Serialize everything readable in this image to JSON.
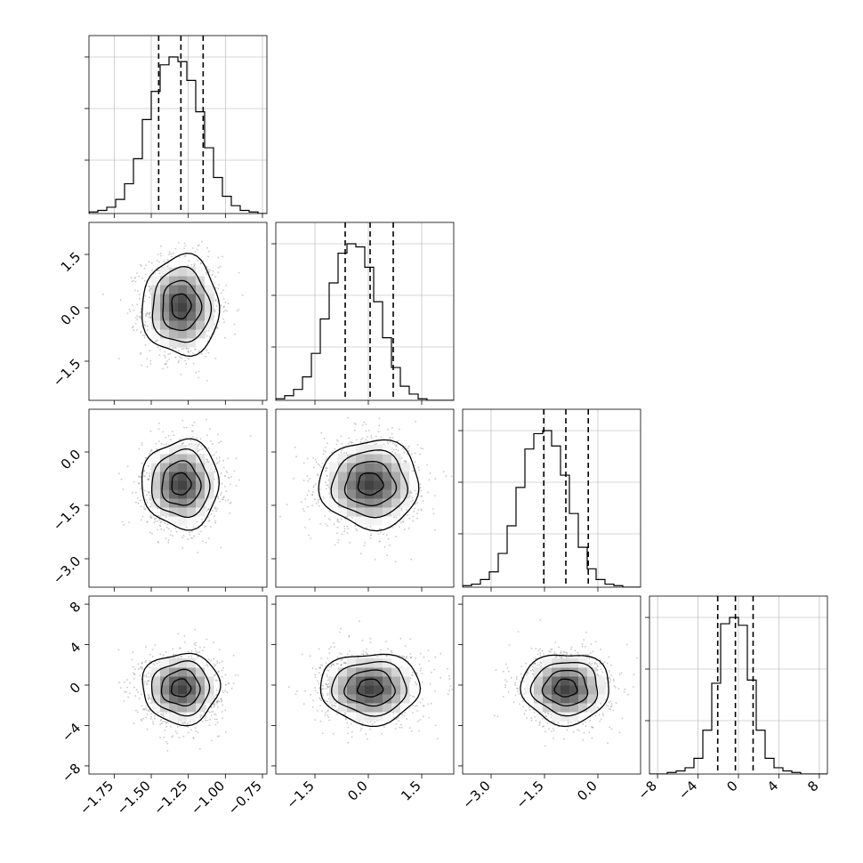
{
  "chart_data": {
    "type": "corner",
    "n_params": 4,
    "grid": true,
    "parameters": [
      {
        "range": [
          -1.92,
          -0.72
        ],
        "ticks": [
          -1.75,
          -1.5,
          -1.25,
          -1.0,
          -0.75
        ],
        "tick_labels": [
          "−1.75",
          "−1.50",
          "−1.25",
          "−1.00",
          "−0.75"
        ],
        "mean": -1.3,
        "sd": 0.13,
        "quantiles": [
          -1.45,
          -1.3,
          -1.15
        ]
      },
      {
        "range": [
          -2.6,
          2.4
        ],
        "ticks": [
          -1.5,
          0.0,
          1.5
        ],
        "tick_labels": [
          "−1.5",
          "0.0",
          "1.5"
        ],
        "mean": 0.05,
        "sd": 0.7,
        "quantiles": [
          -0.65,
          0.05,
          0.7
        ]
      },
      {
        "range": [
          -3.8,
          1.2
        ],
        "ticks": [
          -3.0,
          -1.5,
          0.0
        ],
        "tick_labels": [
          "−3.0",
          "−1.5",
          "0.0"
        ],
        "mean": -0.9,
        "sd": 0.62,
        "quantiles": [
          -1.52,
          -0.9,
          -0.27
        ]
      },
      {
        "range": [
          -8.8,
          8.8
        ],
        "ticks": [
          -8,
          -4,
          0,
          4,
          8
        ],
        "tick_labels": [
          "−8",
          "−4",
          "0",
          "4",
          "8"
        ],
        "mean": -0.3,
        "sd": 1.75,
        "quantiles": [
          -2.05,
          -0.3,
          1.45
        ]
      }
    ],
    "histograms": [
      {
        "param": 0,
        "counts": [
          1,
          2,
          4,
          9,
          19,
          35,
          60,
          78,
          95,
          100,
          97,
          85,
          65,
          42,
          23,
          11,
          5,
          2,
          1,
          0
        ],
        "ymax_fraction": 0.88
      },
      {
        "param": 1,
        "counts": [
          1,
          3,
          7,
          15,
          30,
          52,
          75,
          94,
          100,
          98,
          85,
          63,
          40,
          21,
          9,
          4,
          1,
          0,
          0,
          0
        ],
        "ymax_fraction": 0.88
      },
      {
        "param": 2,
        "counts": [
          1,
          2,
          5,
          10,
          22,
          40,
          65,
          90,
          100,
          102,
          92,
          73,
          48,
          26,
          12,
          5,
          2,
          1,
          0,
          0
        ],
        "ymax_fraction": 0.88
      },
      {
        "param": 3,
        "counts": [
          0,
          0,
          1,
          2,
          4,
          10,
          28,
          58,
          96,
          100,
          95,
          60,
          28,
          10,
          4,
          2,
          1,
          0,
          0,
          0
        ],
        "ymax_fraction": 0.88
      }
    ],
    "contour_levels_sigma": [
      0.5,
      1.0,
      1.5,
      2.0
    ],
    "density_colormap": "grey",
    "scatter_color": "#9a9a9a"
  }
}
